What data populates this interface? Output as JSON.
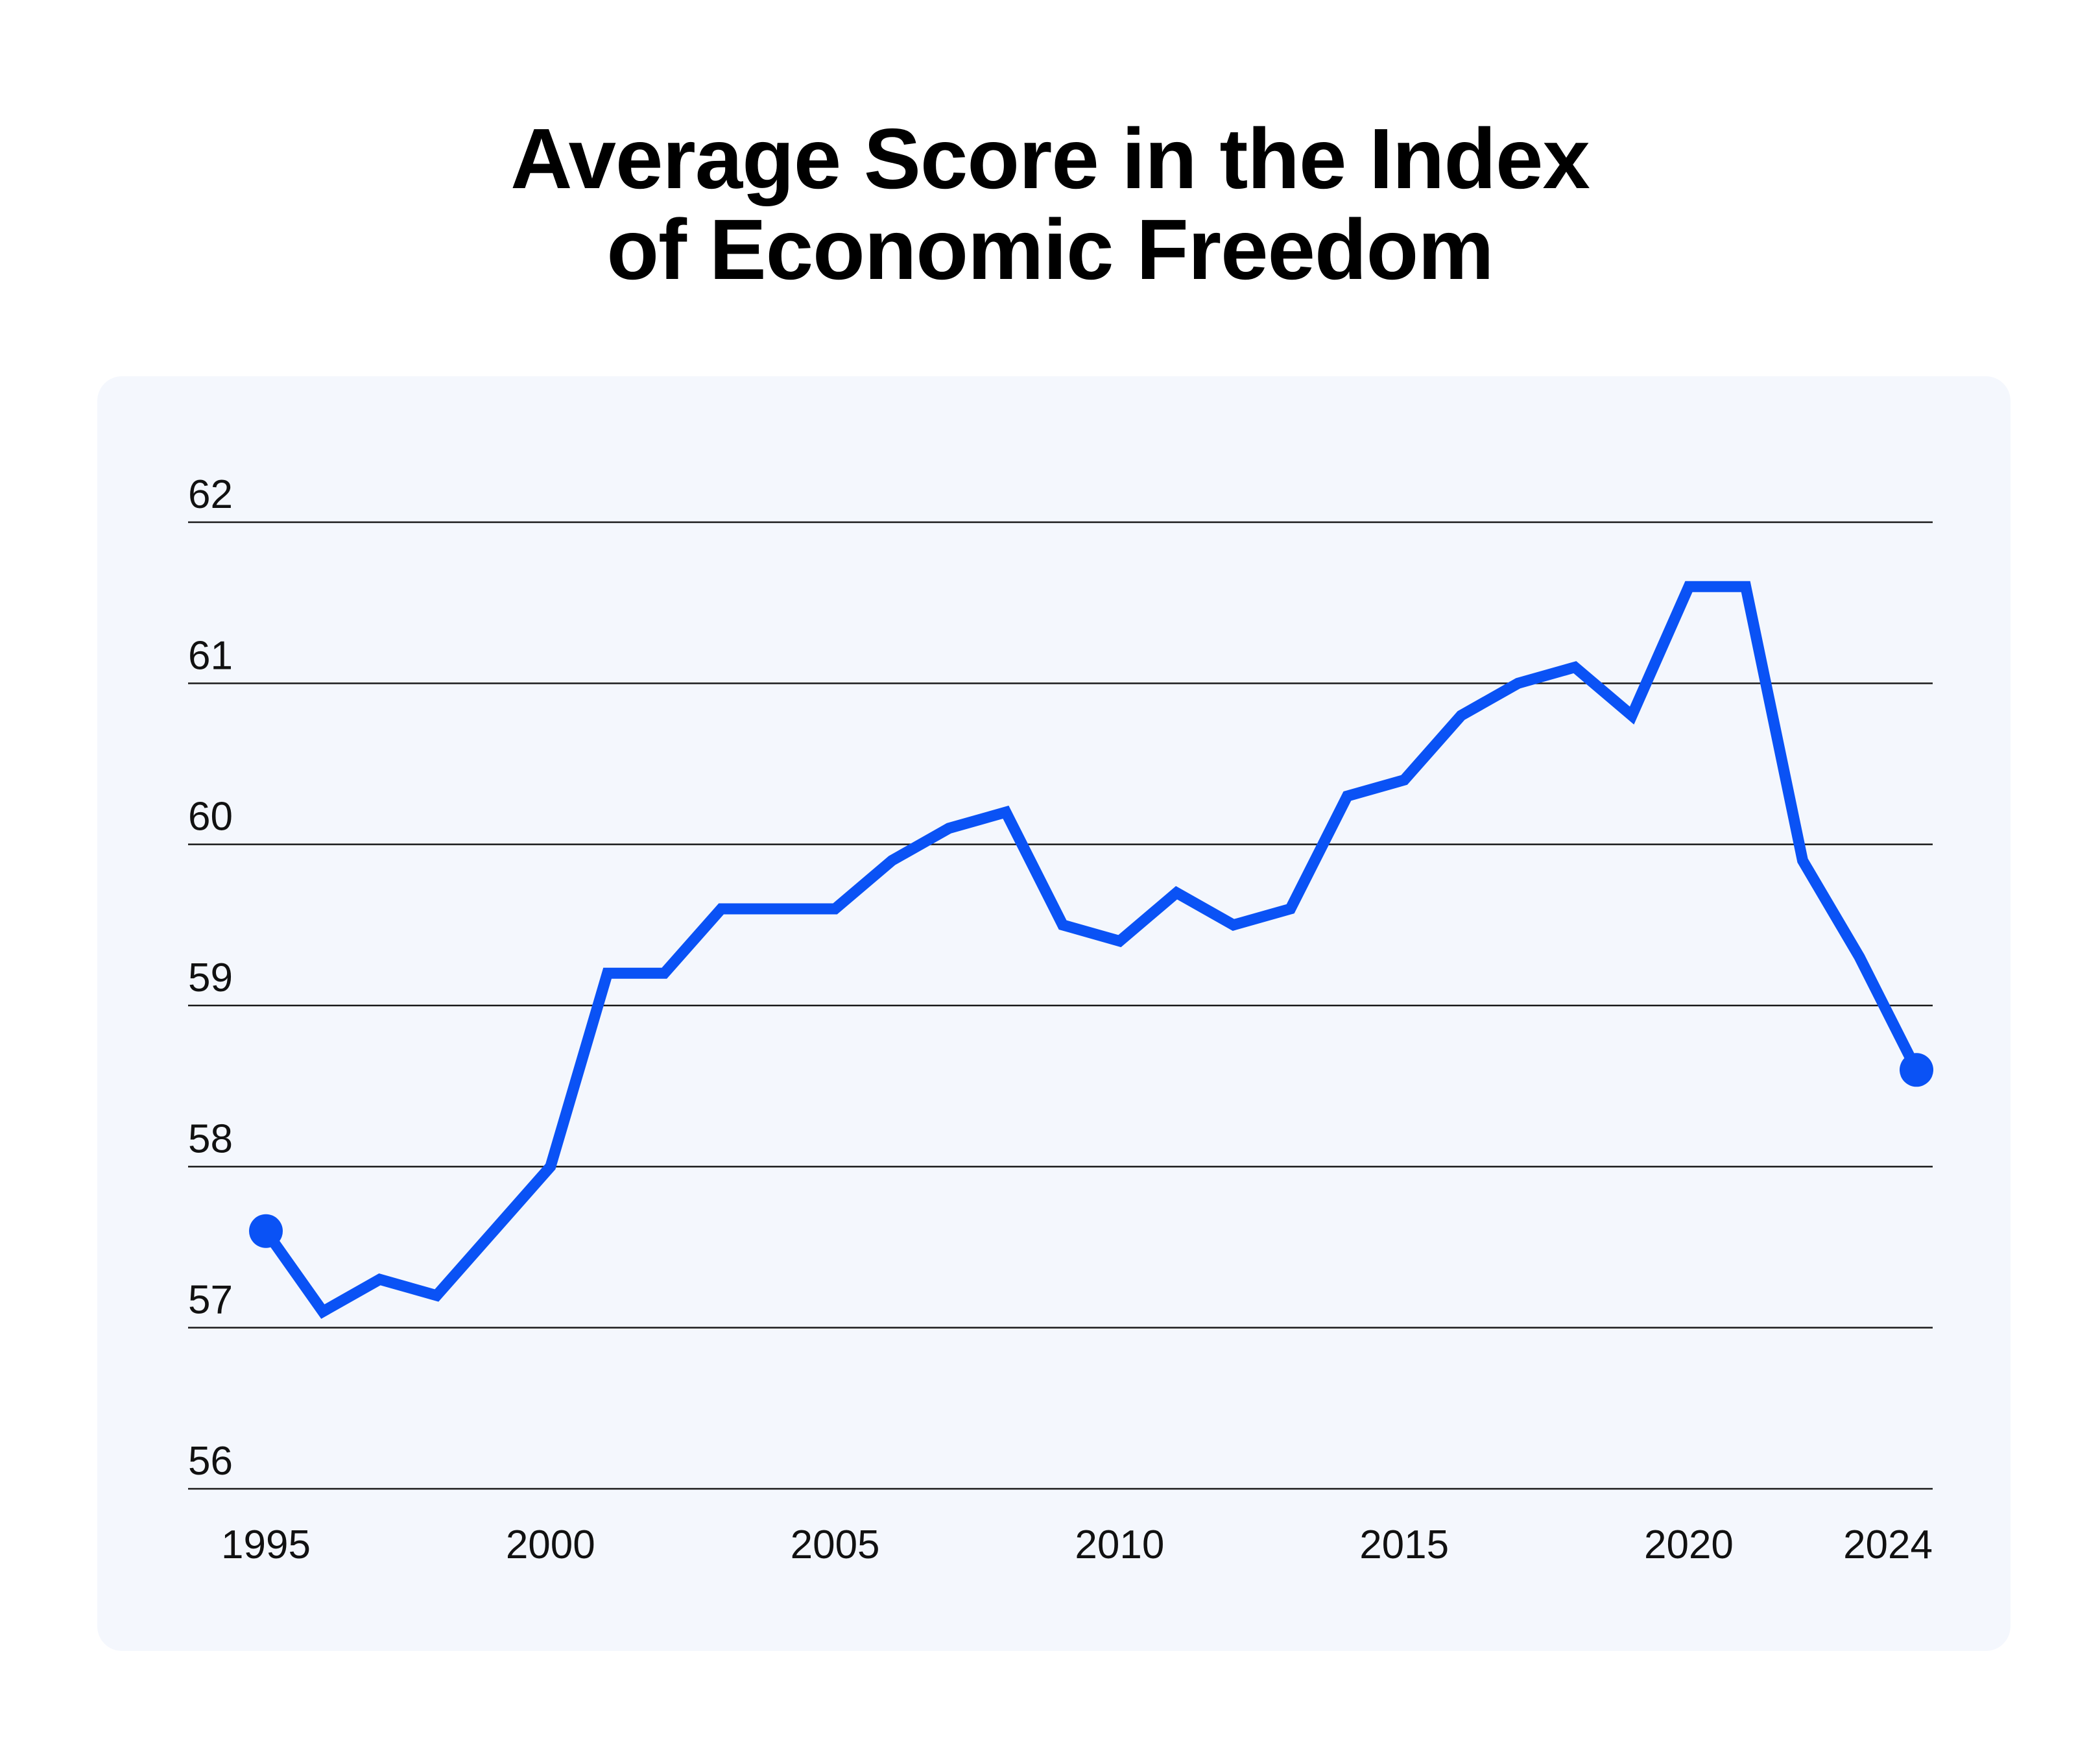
{
  "title_line1": "Average Score in the Index",
  "title_line2": "of Economic Freedom",
  "colors": {
    "line": "#0a52f5",
    "panel": "#f4f7fd",
    "grid": "#1a1a1a",
    "text": "#111111"
  },
  "chart_data": {
    "type": "line",
    "title": "Average Score in the Index of Economic Freedom",
    "xlabel": "",
    "ylabel": "",
    "xlim": [
      1994,
      2025
    ],
    "ylim": [
      56,
      62
    ],
    "y_ticks": [
      "62",
      "61",
      "60",
      "59",
      "58",
      "57",
      "56"
    ],
    "x_ticks": [
      "1995",
      "2000",
      "2005",
      "2010",
      "2015",
      "2020",
      "2024"
    ],
    "grid": true,
    "legend": "none",
    "endpoint_markers": true,
    "series": [
      {
        "x": [
          1995,
          1996,
          1997,
          1998,
          1999,
          2000,
          2001,
          2002,
          2003,
          2004,
          2005,
          2006,
          2007,
          2008,
          2009,
          2010,
          2011,
          2012,
          2013,
          2014,
          2015,
          2016,
          2017,
          2018,
          2019,
          2020,
          2021,
          2022,
          2023,
          2024
        ],
        "values": [
          57.6,
          57.1,
          57.3,
          57.2,
          57.6,
          58.0,
          59.2,
          59.2,
          59.6,
          59.6,
          59.6,
          59.9,
          60.1,
          60.2,
          59.5,
          59.4,
          59.7,
          59.5,
          59.6,
          60.3,
          60.4,
          60.8,
          61.0,
          61.1,
          60.8,
          61.6,
          61.6,
          59.9,
          59.3,
          58.6
        ]
      }
    ]
  }
}
